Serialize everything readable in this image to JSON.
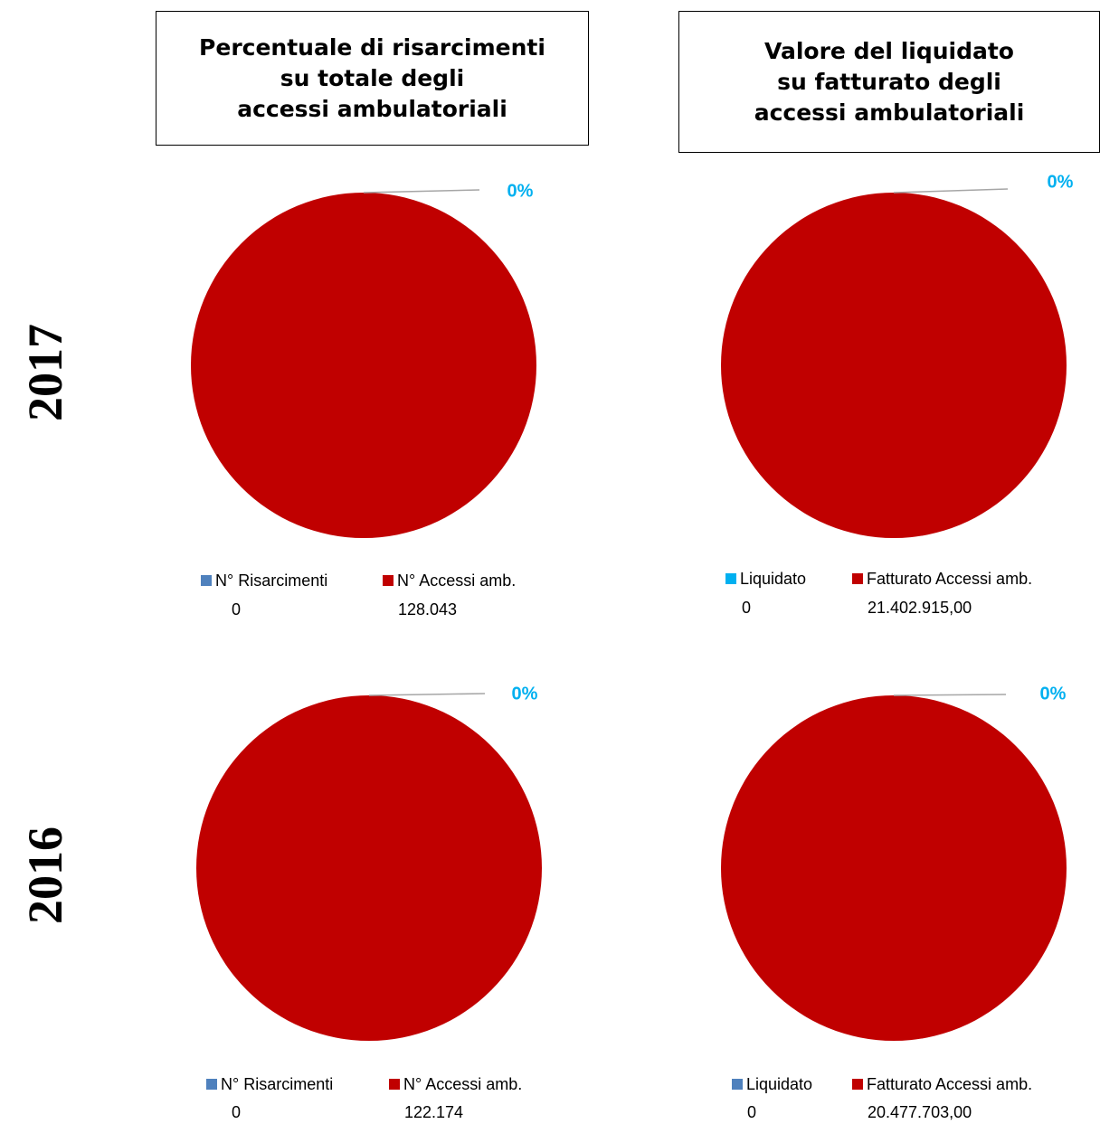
{
  "headers": {
    "left": [
      "Percentuale di risarcimenti",
      "su totale degli",
      "accessi ambulatoriali"
    ],
    "right": [
      "Valore del liquidato",
      "su fatturato degli",
      "accessi ambulatoriali"
    ]
  },
  "years": [
    "2017",
    "2016"
  ],
  "colors": {
    "main_slice": "#c00000",
    "small_slice_blue": "#4f81bd",
    "small_slice_cyan": "#00b0f0",
    "label_color": "#00b0f0",
    "leader": "#a6a6a6"
  },
  "chart_data": [
    {
      "type": "pie",
      "year": "2017",
      "slices": [
        {
          "label": "N° Risarcimenti",
          "value_text": "0",
          "value": 0,
          "color": "#4f81bd"
        },
        {
          "label": "N° Accessi amb.",
          "value_text": "128.043",
          "value": 128043,
          "color": "#c00000"
        }
      ],
      "data_label": "0%"
    },
    {
      "type": "pie",
      "year": "2017",
      "slices": [
        {
          "label": "Liquidato",
          "value_text": "0",
          "value": 0,
          "color": "#00b0f0"
        },
        {
          "label": "Fatturato Accessi amb.",
          "value_text": "21.402.915,00",
          "value": 21402915.0,
          "color": "#c00000"
        }
      ],
      "data_label": "0%"
    },
    {
      "type": "pie",
      "year": "2016",
      "slices": [
        {
          "label": "N° Risarcimenti",
          "value_text": "0",
          "value": 0,
          "color": "#4f81bd"
        },
        {
          "label": "N° Accessi amb.",
          "value_text": "122.174",
          "value": 122174,
          "color": "#c00000"
        }
      ],
      "data_label": "0%"
    },
    {
      "type": "pie",
      "year": "2016",
      "slices": [
        {
          "label": "Liquidato",
          "value_text": "0",
          "value": 0,
          "color": "#4f81bd"
        },
        {
          "label": "Fatturato Accessi amb.",
          "value_text": "20.477.703,00",
          "value": 20477703.0,
          "color": "#c00000"
        }
      ],
      "data_label": "0%"
    }
  ]
}
